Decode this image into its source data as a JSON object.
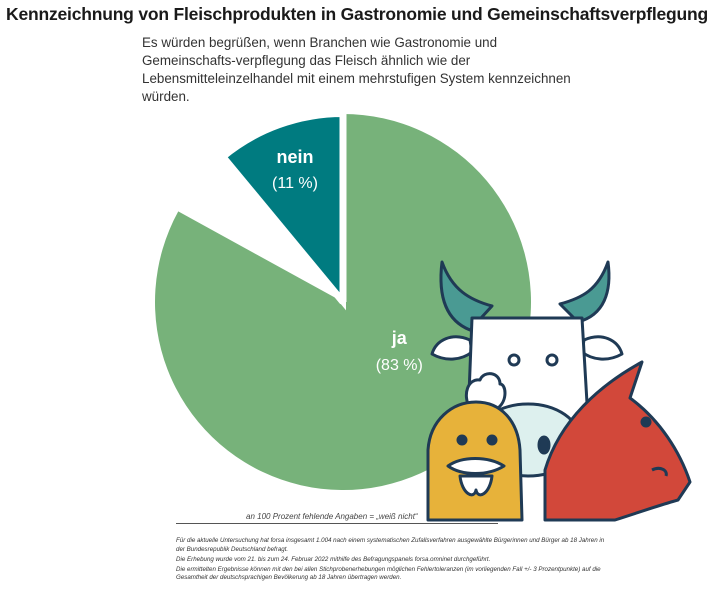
{
  "title": "Kennzeichnung von Fleischprodukten in Gastronomie und Gemeinschaftsverpflegung",
  "subtitle": "Es würden begrüßen, wenn Branchen wie Gastronomie und Gemeinschafts-verpflegung das Fleisch ähnlich wie der Lebensmitteleinzelhandel mit einem mehrstufigen System kennzeichnen würden.",
  "chart_data": {
    "type": "pie",
    "title": "Kennzeichnung von Fleischprodukten in Gastronomie und Gemeinschaftsverpflegung",
    "slices": [
      {
        "label": "ja",
        "value_label": "(83 %)",
        "value": 83,
        "color": "#77b27a",
        "exploded": false
      },
      {
        "label": "nein",
        "value_label": "(11 %)",
        "value": 11,
        "color": "#007b80",
        "exploded": true
      }
    ],
    "missing_value": 6
  },
  "missing_note": "an 100 Prozent fehlende Angaben = „weiß nicht“",
  "footnotes": [
    "Für die aktuelle Untersuchung hat forsa insgesamt 1.004 nach einem systematischen Zufallsverfahren ausgewählte Bürgerinnen und Bürger ab 18 Jahren in der Bundesrepublik Deutschland befragt.",
    "Die Erhebung wurde vom 21. bis zum 24. Februar 2022 mithilfe des Befragungspanels forsa.omninet durchgeführt.",
    "Die ermittelten Ergebnisse können mit den bei allen Stichprobenerhebungen möglichen Fehlertoleranzen (im vorliegenden Fall +/- 3 Prozentpunkte) auf die Gesamtheit der deutschsprachigen Bevölkerung ab 18 Jahren übertragen werden."
  ],
  "colors": {
    "cow_horn": "#4a9a93",
    "chicken": "#e7b23a",
    "pig": "#d2483a",
    "outline": "#1f3a55"
  }
}
